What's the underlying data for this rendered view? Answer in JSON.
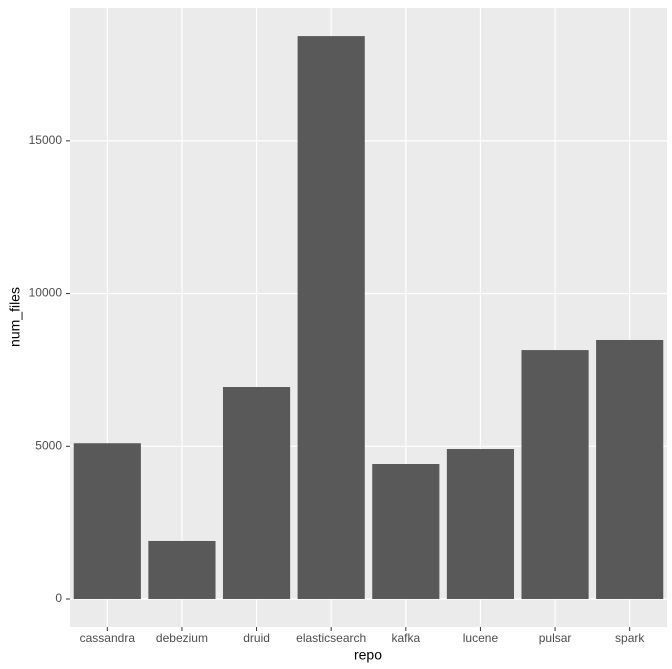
{
  "chart_data": {
    "type": "bar",
    "x_label": "repo",
    "y_label": "num_files",
    "categories": [
      "cassandra",
      "debezium",
      "druid",
      "elasticsearch",
      "kafka",
      "lucene",
      "pulsar",
      "spark"
    ],
    "values": [
      5100,
      1900,
      6940,
      18430,
      4420,
      4910,
      8150,
      8480
    ],
    "color": "#595959",
    "ylim": [
      -917,
      19350
    ],
    "yticks": [
      0,
      5000,
      10000,
      15000
    ],
    "grid": true
  }
}
